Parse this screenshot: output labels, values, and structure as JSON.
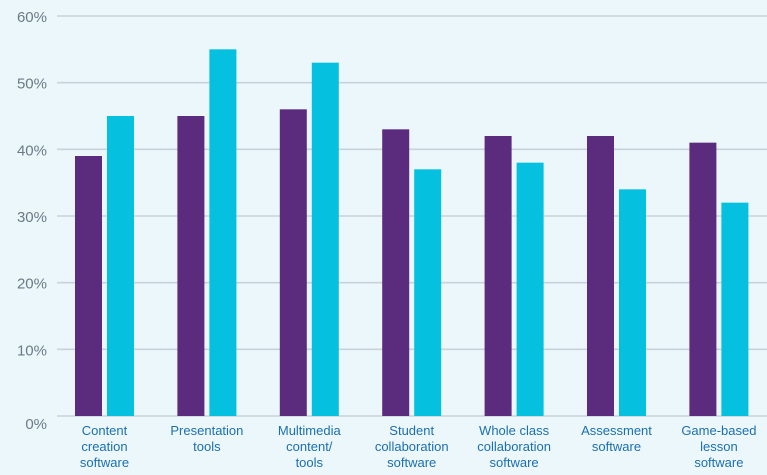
{
  "chart_data": {
    "type": "bar",
    "title": "",
    "xlabel": "",
    "ylabel": "",
    "categories": [
      [
        "Content",
        "creation",
        "software"
      ],
      [
        "Presentation",
        "tools"
      ],
      [
        "Multimedia",
        "content/",
        "tools"
      ],
      [
        "Student",
        "collaboration",
        "software"
      ],
      [
        "Whole class",
        "collaboration",
        "software"
      ],
      [
        "Assessment",
        "software"
      ],
      [
        "Game-based",
        "lesson",
        "software"
      ]
    ],
    "series": [
      {
        "values": [
          39,
          45,
          46,
          43,
          42,
          42,
          41
        ],
        "color": "#5b2c7e"
      },
      {
        "values": [
          45,
          55,
          53,
          37,
          38,
          34,
          32
        ],
        "color": "#05c0de"
      }
    ],
    "ylim": [
      0,
      60
    ],
    "yticks": [
      0,
      10,
      20,
      30,
      40,
      50,
      60
    ],
    "ytick_labels": [
      "0%",
      "10%",
      "20%",
      "30%",
      "40%",
      "50%",
      "60%"
    ],
    "grid": true,
    "legend": "none"
  }
}
